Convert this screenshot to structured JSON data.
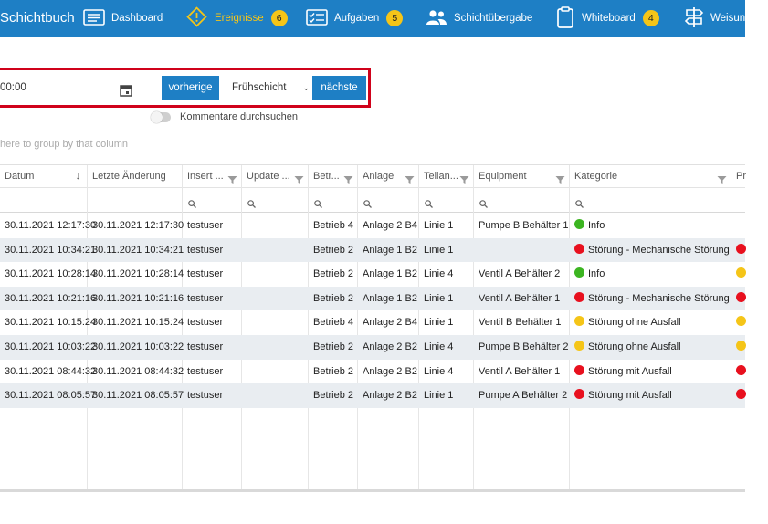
{
  "nav": {
    "brand": "Schichtbuch",
    "items": [
      {
        "label": "Dashboard",
        "icon": "dashboard-icon",
        "badge": ""
      },
      {
        "label": "Ereignisse",
        "icon": "warning-icon",
        "badge": "6"
      },
      {
        "label": "Aufgaben",
        "icon": "checklist-icon",
        "badge": "5"
      },
      {
        "label": "Schichtübergabe",
        "icon": "users-icon",
        "badge": ""
      },
      {
        "label": "Whiteboard",
        "icon": "clipboard-icon",
        "badge": "4"
      },
      {
        "label": "Weisung",
        "icon": "signpost-icon",
        "badge": ""
      }
    ],
    "colors": {
      "bar": "#1e7fc5",
      "badge": "#f5c518",
      "warn_text": "#f5c518"
    }
  },
  "shift": {
    "date_value": "00:00",
    "prev_label": "vorherige",
    "shift_value": "Frühschicht",
    "next_label": "nächste",
    "toggle_label": "Kommentare durchsuchen",
    "highlight_color": "#d0021b"
  },
  "grid": {
    "group_hint": "here to group by that column",
    "columns": [
      "Datum",
      "Letzte Änderung",
      "Insert ...",
      "Update ...",
      "Betr...",
      "Anlage",
      "Teilan...",
      "Equipment",
      "Kategorie",
      "Pr"
    ],
    "rows": [
      {
        "datum": "30.11.2021 12:17:30",
        "letzte": "30.11.2021 12:17:30",
        "insert": "testuser",
        "update": "",
        "betrieb": "Betrieb 4",
        "anlage": "Anlage 2 B4",
        "teil": "Linie 1",
        "equipment": "Pumpe B Behälter 1",
        "kategorie": "Info",
        "kat_color": "#3cb521",
        "pr_color": ""
      },
      {
        "datum": "30.11.2021 10:34:21",
        "letzte": "30.11.2021 10:34:21",
        "insert": "testuser",
        "update": "",
        "betrieb": "Betrieb 2",
        "anlage": "Anlage 1 B2",
        "teil": "Linie 1",
        "equipment": "",
        "kategorie": "Störung - Mechanische Störung",
        "kat_color": "#e8101e",
        "pr_color": "#e8101e"
      },
      {
        "datum": "30.11.2021 10:28:14",
        "letzte": "30.11.2021 10:28:14",
        "insert": "testuser",
        "update": "",
        "betrieb": "Betrieb 2",
        "anlage": "Anlage 1 B2",
        "teil": "Linie 4",
        "equipment": "Ventil A Behälter 2",
        "kategorie": "Info",
        "kat_color": "#3cb521",
        "pr_color": "#f5c518"
      },
      {
        "datum": "30.11.2021 10:21:16",
        "letzte": "30.11.2021 10:21:16",
        "insert": "testuser",
        "update": "",
        "betrieb": "Betrieb 2",
        "anlage": "Anlage 1 B2",
        "teil": "Linie 1",
        "equipment": "Ventil A Behälter 1",
        "kategorie": "Störung - Mechanische Störung",
        "kat_color": "#e8101e",
        "pr_color": "#e8101e"
      },
      {
        "datum": "30.11.2021 10:15:24",
        "letzte": "30.11.2021 10:15:24",
        "insert": "testuser",
        "update": "",
        "betrieb": "Betrieb 4",
        "anlage": "Anlage 2 B4",
        "teil": "Linie 1",
        "equipment": "Ventil B Behälter 1",
        "kategorie": "Störung ohne Ausfall",
        "kat_color": "#f5c518",
        "pr_color": "#f5c518"
      },
      {
        "datum": "30.11.2021 10:03:22",
        "letzte": "30.11.2021 10:03:22",
        "insert": "testuser",
        "update": "",
        "betrieb": "Betrieb 2",
        "anlage": "Anlage 2 B2",
        "teil": "Linie 4",
        "equipment": "Pumpe B Behälter 2",
        "kategorie": "Störung ohne Ausfall",
        "kat_color": "#f5c518",
        "pr_color": "#f5c518"
      },
      {
        "datum": "30.11.2021 08:44:32",
        "letzte": "30.11.2021 08:44:32",
        "insert": "testuser",
        "update": "",
        "betrieb": "Betrieb 2",
        "anlage": "Anlage 2 B2",
        "teil": "Linie 4",
        "equipment": "Ventil A Behälter 1",
        "kategorie": "Störung mit Ausfall",
        "kat_color": "#e8101e",
        "pr_color": "#e8101e"
      },
      {
        "datum": "30.11.2021 08:05:57",
        "letzte": "30.11.2021 08:05:57",
        "insert": "testuser",
        "update": "",
        "betrieb": "Betrieb 2",
        "anlage": "Anlage 2 B2",
        "teil": "Linie 1",
        "equipment": "Pumpe A Behälter 2",
        "kategorie": "Störung mit Ausfall",
        "kat_color": "#e8101e",
        "pr_color": "#e8101e"
      }
    ]
  }
}
